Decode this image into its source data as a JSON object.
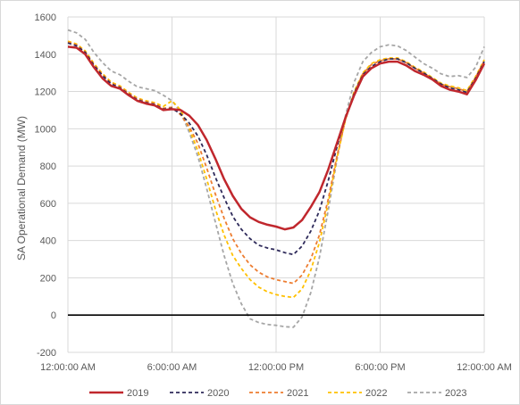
{
  "chart_data": {
    "type": "line",
    "title": "",
    "xlabel": "",
    "ylabel": "SA Operational Demand (MW)",
    "ylim": [
      -200,
      1600
    ],
    "y_ticks": [
      -200,
      0,
      200,
      400,
      600,
      800,
      1000,
      1200,
      1400,
      1600
    ],
    "x_hours_range": [
      0,
      24
    ],
    "x_ticks": [
      {
        "hour": 0,
        "label": "12:00:00 AM"
      },
      {
        "hour": 6,
        "label": "6:00:00 AM"
      },
      {
        "hour": 12,
        "label": "12:00:00 PM"
      },
      {
        "hour": 18,
        "label": "6:00:00 PM"
      },
      {
        "hour": 24,
        "label": "12:00:00 AM"
      }
    ],
    "grid": true,
    "legend_position": "bottom",
    "zero_line": true,
    "x_hours": [
      0,
      0.5,
      1,
      1.5,
      2,
      2.5,
      3,
      3.5,
      4,
      4.5,
      5,
      5.5,
      6,
      6.5,
      7,
      7.5,
      8,
      8.5,
      9,
      9.5,
      10,
      10.5,
      11,
      11.5,
      12,
      12.5,
      13,
      13.5,
      14,
      14.5,
      15,
      15.5,
      16,
      16.5,
      17,
      17.5,
      18,
      18.5,
      19,
      19.5,
      20,
      20.5,
      21,
      21.5,
      22,
      22.5,
      23,
      23.5,
      24
    ],
    "series": [
      {
        "name": "2019",
        "color": "#C0272D",
        "dash": "solid",
        "values": [
          1440,
          1435,
          1400,
          1330,
          1270,
          1230,
          1215,
          1180,
          1150,
          1135,
          1125,
          1100,
          1105,
          1100,
          1070,
          1020,
          940,
          840,
          730,
          640,
          570,
          525,
          500,
          485,
          475,
          460,
          470,
          510,
          580,
          660,
          780,
          920,
          1060,
          1180,
          1280,
          1325,
          1350,
          1360,
          1360,
          1340,
          1310,
          1290,
          1265,
          1230,
          1210,
          1200,
          1185,
          1260,
          1350
        ]
      },
      {
        "name": "2020",
        "color": "#2E2A5A",
        "dash": "dashed",
        "values": [
          1460,
          1445,
          1410,
          1340,
          1285,
          1240,
          1220,
          1185,
          1155,
          1140,
          1130,
          1105,
          1110,
          1080,
          1030,
          960,
          860,
          740,
          630,
          530,
          460,
          410,
          375,
          360,
          350,
          335,
          325,
          370,
          450,
          560,
          720,
          900,
          1060,
          1190,
          1290,
          1335,
          1360,
          1375,
          1375,
          1355,
          1325,
          1300,
          1270,
          1240,
          1220,
          1210,
          1195,
          1270,
          1360
        ]
      },
      {
        "name": "2021",
        "color": "#ED7D31",
        "dash": "dashed",
        "values": [
          1465,
          1450,
          1412,
          1345,
          1290,
          1245,
          1225,
          1190,
          1160,
          1145,
          1135,
          1110,
          1115,
          1075,
          1010,
          920,
          790,
          650,
          520,
          410,
          330,
          270,
          230,
          205,
          190,
          180,
          170,
          215,
          300,
          430,
          620,
          850,
          1050,
          1190,
          1295,
          1345,
          1365,
          1375,
          1375,
          1355,
          1325,
          1300,
          1270,
          1240,
          1225,
          1215,
          1200,
          1275,
          1365
        ]
      },
      {
        "name": "2022",
        "color": "#FFC000",
        "dash": "dashed",
        "values": [
          1470,
          1455,
          1418,
          1350,
          1295,
          1250,
          1230,
          1195,
          1165,
          1150,
          1140,
          1120,
          1150,
          1100,
          1000,
          880,
          730,
          570,
          430,
          320,
          250,
          190,
          150,
          125,
          110,
          100,
          95,
          140,
          240,
          390,
          600,
          840,
          1050,
          1200,
          1300,
          1350,
          1370,
          1380,
          1380,
          1360,
          1330,
          1305,
          1275,
          1245,
          1230,
          1220,
          1205,
          1280,
          1370
        ]
      },
      {
        "name": "2023",
        "color": "#A6A6A6",
        "dash": "dashed",
        "values": [
          1530,
          1515,
          1480,
          1410,
          1355,
          1310,
          1290,
          1255,
          1225,
          1215,
          1205,
          1180,
          1150,
          1090,
          980,
          850,
          680,
          500,
          320,
          170,
          60,
          -20,
          -40,
          -50,
          -55,
          -62,
          -65,
          -10,
          120,
          310,
          560,
          830,
          1070,
          1250,
          1360,
          1410,
          1440,
          1450,
          1445,
          1420,
          1385,
          1350,
          1325,
          1295,
          1280,
          1285,
          1275,
          1330,
          1440
        ]
      }
    ]
  }
}
